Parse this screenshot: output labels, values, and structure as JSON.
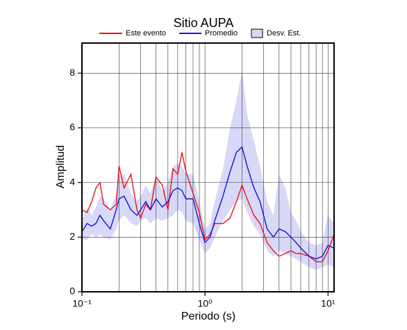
{
  "chart_data": {
    "type": "line",
    "title": "Sitio AUPA",
    "xlabel": "Periodo (s)",
    "ylabel": "Amplitud",
    "x": [
      0.1,
      0.11,
      0.12,
      0.13,
      0.14,
      0.15,
      0.17,
      0.19,
      0.2,
      0.22,
      0.25,
      0.28,
      0.3,
      0.33,
      0.36,
      0.4,
      0.45,
      0.5,
      0.55,
      0.6,
      0.65,
      0.7,
      0.8,
      0.9,
      1.0,
      1.1,
      1.2,
      1.4,
      1.6,
      1.8,
      2.0,
      2.2,
      2.5,
      2.8,
      3.2,
      3.6,
      4.0,
      4.5,
      5,
      5.5,
      6,
      7,
      8,
      9,
      10,
      11.2
    ],
    "series": [
      {
        "name": "Este evento",
        "color": "#ee1111",
        "values": [
          3.0,
          2.9,
          3.3,
          3.8,
          4.0,
          3.2,
          3.0,
          3.2,
          4.6,
          3.8,
          4.3,
          3.0,
          2.7,
          3.2,
          3.0,
          4.2,
          3.9,
          3.0,
          4.5,
          4.3,
          5.1,
          4.4,
          3.6,
          2.9,
          1.9,
          2.1,
          2.5,
          2.5,
          2.7,
          3.3,
          3.9,
          3.4,
          2.8,
          2.5,
          1.8,
          1.5,
          1.3,
          1.4,
          1.5,
          1.4,
          1.4,
          1.3,
          1.1,
          1.1,
          1.5,
          2.1
        ]
      },
      {
        "name": "Promedio",
        "color": "#1111dd",
        "values": [
          2.2,
          2.5,
          2.4,
          2.5,
          2.8,
          2.6,
          2.3,
          3.0,
          3.4,
          3.5,
          3.0,
          2.8,
          3.0,
          3.3,
          3.0,
          3.4,
          3.1,
          3.3,
          3.7,
          3.8,
          3.7,
          3.4,
          3.4,
          2.5,
          1.8,
          2.0,
          2.6,
          3.5,
          4.4,
          5.1,
          5.3,
          4.6,
          3.8,
          3.3,
          2.3,
          2.0,
          2.3,
          2.2,
          2.0,
          1.8,
          1.6,
          1.3,
          1.2,
          1.3,
          1.7,
          1.6
        ]
      }
    ],
    "band": {
      "name": "Desv. Est.",
      "color": "#d8d8f8",
      "lower": [
        1.9,
        1.9,
        2.1,
        2.0,
        2.1,
        2.0,
        1.9,
        2.3,
        2.6,
        2.8,
        2.5,
        2.4,
        2.6,
        2.7,
        2.5,
        2.7,
        2.6,
        2.7,
        2.8,
        3.0,
        2.9,
        2.6,
        2.5,
        1.9,
        1.4,
        1.6,
        2.0,
        2.6,
        3.0,
        3.3,
        3.4,
        2.9,
        2.4,
        2.1,
        1.5,
        1.3,
        1.5,
        1.4,
        1.3,
        1.2,
        1.1,
        0.9,
        0.8,
        0.9,
        1.0,
        0.9
      ],
      "upper": [
        2.6,
        3.1,
        2.8,
        3.1,
        3.5,
        3.4,
        3.0,
        3.6,
        4.2,
        4.3,
        3.6,
        3.3,
        3.5,
        3.9,
        3.6,
        4.2,
        3.7,
        4.0,
        4.6,
        4.7,
        4.6,
        4.3,
        4.3,
        3.3,
        2.3,
        2.5,
        3.3,
        4.5,
        6.0,
        7.0,
        8.1,
        6.5,
        5.5,
        4.6,
        3.3,
        2.8,
        4.3,
        3.8,
        2.9,
        2.6,
        2.2,
        1.8,
        1.7,
        1.8,
        2.8,
        2.5
      ]
    },
    "xscale": "log",
    "xlim": [
      0.1,
      11.2
    ],
    "xticks": [
      {
        "value": 0.1,
        "label": "10⁻¹"
      },
      {
        "value": 1,
        "label": "10⁰"
      },
      {
        "value": 10,
        "label": "10¹"
      }
    ],
    "x_minor_ticks": [
      0.2,
      0.3,
      0.4,
      0.5,
      0.6,
      0.7,
      0.8,
      0.9,
      2,
      3,
      4,
      5,
      6,
      7,
      8,
      9
    ],
    "ylim": [
      0,
      9.1
    ],
    "yticks": [
      0,
      2,
      4,
      6,
      8
    ],
    "grid": true,
    "legend": "top"
  }
}
